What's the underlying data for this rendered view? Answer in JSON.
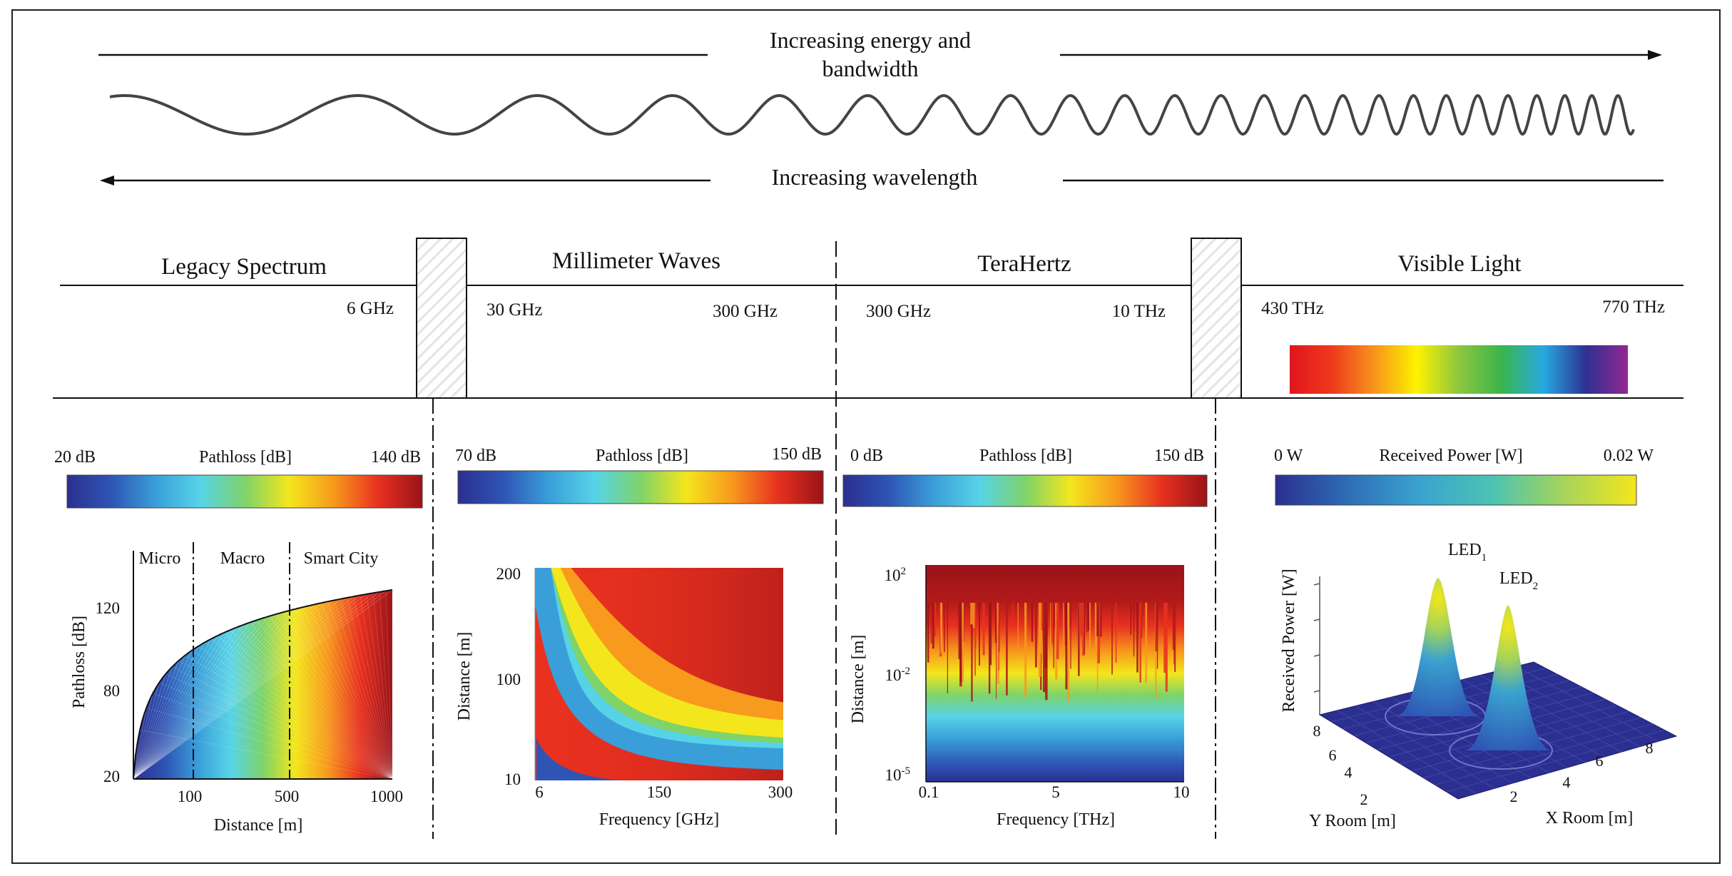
{
  "header": {
    "energy_label_line1": "Increasing energy and",
    "energy_label_line2": "bandwidth",
    "wavelength_label": "Increasing wavelength"
  },
  "bands": [
    {
      "name": "Legacy Spectrum",
      "freq_right": "6 GHz"
    },
    {
      "name": "Millimeter Waves",
      "freq_left": "30 GHz",
      "freq_right": "300 GHz"
    },
    {
      "name": "TeraHertz",
      "freq_left": "300 GHz",
      "freq_right": "10 THz"
    },
    {
      "name": "Visible Light",
      "freq_left": "430 THz",
      "freq_right": "770 THz"
    }
  ],
  "colorbars": [
    {
      "min": "20 dB",
      "title": "Pathloss [dB]",
      "max": "140 dB"
    },
    {
      "min": "70 dB",
      "title": "Pathloss [dB]",
      "max": "150 dB"
    },
    {
      "min": "0 dB",
      "title": "Pathloss [dB]",
      "max": "150 dB"
    },
    {
      "min": "0 W",
      "title": "Received Power [W]",
      "max": "0.02 W"
    }
  ],
  "colors": {
    "jet": [
      "#2b2f8f",
      "#2e55b5",
      "#3a9fd9",
      "#57d3e8",
      "#7ed36a",
      "#f4e61c",
      "#f79a1d",
      "#e8311f",
      "#9a1319"
    ],
    "rainbow": [
      "#e1141e",
      "#ee3a1c",
      "#f7941d",
      "#fef200",
      "#8dc63f",
      "#3ab54a",
      "#27aae1",
      "#2e3192",
      "#92278f"
    ],
    "power": [
      "#2b2f8f",
      "#2e6db5",
      "#3aa3cf",
      "#4bc3b3",
      "#a6d45a",
      "#f4e61c"
    ]
  },
  "chart_data": [
    {
      "type": "area",
      "xlabel": "Distance [m]",
      "ylabel": "Pathloss [dB]",
      "x_ticks": [
        "100",
        "500",
        "1000"
      ],
      "y_ticks": [
        "20",
        "80",
        "120"
      ],
      "regions": [
        "Micro",
        "Macro",
        "Smart City"
      ],
      "ylim": [
        20,
        130
      ],
      "series": [
        {
          "x": [
            1,
            100,
            500,
            1000
          ],
          "values": [
            20,
            107,
            120,
            128
          ]
        }
      ]
    },
    {
      "type": "heatmap",
      "xlabel": "Frequency [GHz]",
      "ylabel": "Distance [m]",
      "x_ticks": [
        "6",
        "150",
        "300"
      ],
      "y_ticks": [
        "10",
        "100",
        "200"
      ]
    },
    {
      "type": "heatmap",
      "xlabel": "Frequency [THz]",
      "ylabel": "Distance [m]",
      "x_ticks": [
        "0.1",
        "5",
        "10"
      ],
      "y_ticks": [
        {
          "base": "10",
          "exp": "2"
        },
        {
          "base": "10",
          "exp": "-2"
        },
        {
          "base": "10",
          "exp": "-5"
        }
      ]
    },
    {
      "type": "surface",
      "zlabel": "Received Power [W]",
      "xlabel": "X Room [m]",
      "ylabel": "Y Room [m]",
      "x_ticks": [
        "2",
        "4",
        "6",
        "8"
      ],
      "y_ticks": [
        "2",
        "4",
        "6",
        "8"
      ],
      "peaks": [
        {
          "label": "LED",
          "sub": "1"
        },
        {
          "label": "LED",
          "sub": "2"
        }
      ]
    }
  ]
}
